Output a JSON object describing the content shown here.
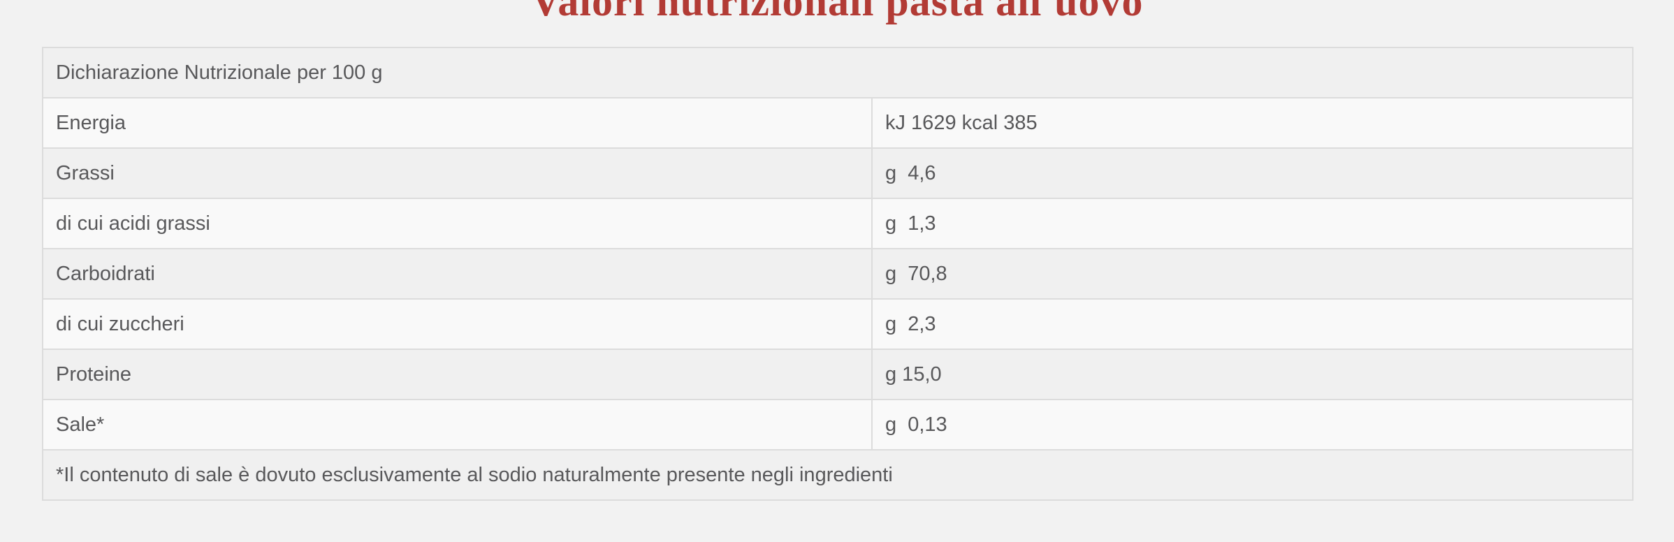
{
  "page": {
    "title": "Valori nutrizionali pasta all'uovo",
    "accent_color": "#b23b35",
    "background_color": "#f2f2f2",
    "row_shade_color": "#f0f0f0",
    "row_light_color": "#f9f9f9",
    "border_color": "#dcdcdc",
    "text_color": "#58585a"
  },
  "table": {
    "header": "Dichiarazione Nutrizionale per 100 g",
    "rows": [
      {
        "label": "Energia",
        "value": "kJ 1629 kcal 385"
      },
      {
        "label": "Grassi",
        "value": "g  4,6"
      },
      {
        "label": "di cui acidi grassi",
        "value": "g  1,3"
      },
      {
        "label": "Carboidrati",
        "value": "g  70,8"
      },
      {
        "label": "di cui zuccheri",
        "value": "g  2,3"
      },
      {
        "label": "Proteine",
        "value": "g 15,0"
      },
      {
        "label": "Sale*",
        "value": "g  0,13"
      }
    ],
    "footnote": "*Il contenuto di sale è dovuto esclusivamente al sodio naturalmente presente negli ingredienti"
  }
}
